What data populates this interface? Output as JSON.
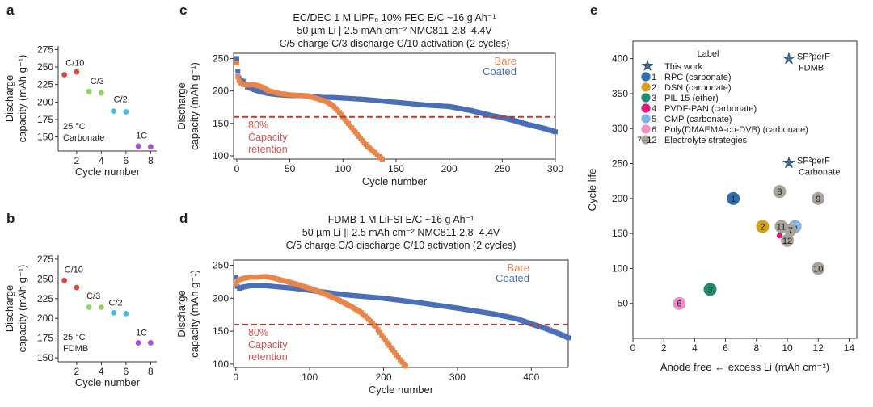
{
  "panels": {
    "a": {
      "letter": "a"
    },
    "b": {
      "letter": "b"
    },
    "c": {
      "letter": "c"
    },
    "d": {
      "letter": "d"
    },
    "e": {
      "letter": "e"
    }
  },
  "colors": {
    "bare": "#e8864a",
    "coated": "#4a6fb8",
    "retention_line": "#c0392b",
    "retention_text": "#d9534f",
    "c10": "#e0473f",
    "c3": "#8ed45a",
    "c2": "#4ab8e8",
    "c1": "#a64fd6"
  },
  "chart_data": [
    {
      "id": "a",
      "type": "scatter",
      "title": "",
      "xlabel": "Cycle number",
      "ylabel": "Discharge capacity (mAh g⁻¹)",
      "xlim": [
        0.5,
        8.5
      ],
      "ylim": [
        130,
        280
      ],
      "xticks": [
        2,
        4,
        6,
        8
      ],
      "yticks": [
        150,
        175,
        200,
        225,
        250,
        275
      ],
      "x": [
        1,
        2,
        3,
        4,
        5,
        6,
        7,
        8
      ],
      "y": [
        239,
        243,
        215,
        213,
        187,
        186,
        137,
        136
      ],
      "rate_labels": [
        {
          "text": "C/10",
          "x": 1.1,
          "y": 252,
          "color": "#e0473f"
        },
        {
          "text": "C/3",
          "x": 3.1,
          "y": 226,
          "color": "#8ed45a"
        },
        {
          "text": "C/2",
          "x": 5.0,
          "y": 200,
          "color": "#4ab8e8"
        },
        {
          "text": "1C",
          "x": 6.8,
          "y": 148,
          "color": "#a64fd6"
        }
      ],
      "note_line1": "25 °C",
      "note_line2": "Carbonate"
    },
    {
      "id": "b",
      "type": "scatter",
      "title": "",
      "xlabel": "Cycle number",
      "ylabel": "Discharge capacity (mAh g⁻¹)",
      "xlim": [
        0.5,
        8.5
      ],
      "ylim": [
        145,
        280
      ],
      "xticks": [
        2,
        4,
        6,
        8
      ],
      "yticks": [
        150,
        175,
        200,
        225,
        250,
        275
      ],
      "x": [
        1,
        2,
        3,
        4,
        5,
        6,
        7,
        8
      ],
      "y": [
        248,
        239,
        214,
        214,
        207,
        206,
        169,
        169
      ],
      "rate_labels": [
        {
          "text": "C/10",
          "x": 1.0,
          "y": 258,
          "color": "#e0473f"
        },
        {
          "text": "C/3",
          "x": 2.8,
          "y": 225,
          "color": "#8ed45a"
        },
        {
          "text": "C/2",
          "x": 4.6,
          "y": 216,
          "color": "#4ab8e8"
        },
        {
          "text": "1C",
          "x": 6.8,
          "y": 178,
          "color": "#a64fd6"
        }
      ],
      "note_line1": "25 °C",
      "note_line2": "FDMB"
    },
    {
      "id": "c",
      "type": "line",
      "title_line1": "EC/DEC 1 M LiPF₆ 10% FEC E/C ~16 g Ah⁻¹",
      "title_line2": "50 µm Li | 2.5 mAh cm⁻² NMC811 2.8–4.4V",
      "title_line3": "C/5 charge C/3 discharge C/10 activation (2 cycles)",
      "xlabel": "Cycle number",
      "ylabel": "Discharge capacity (mAh g⁻¹)",
      "xlim": [
        -3,
        300
      ],
      "ylim": [
        95,
        258
      ],
      "xticks": [
        0,
        50,
        100,
        150,
        200,
        250,
        300
      ],
      "yticks": [
        100,
        150,
        200,
        250
      ],
      "retention_y": 160,
      "retention_label1": "80%",
      "retention_label2": "Capacity",
      "retention_label3": "retention",
      "series": [
        {
          "name": "Bare",
          "x": [
            0,
            1,
            2,
            4,
            6,
            10,
            15,
            20,
            25,
            30,
            40,
            50,
            60,
            70,
            80,
            85,
            90,
            95,
            100,
            105,
            110,
            115,
            120,
            125,
            130,
            134,
            137
          ],
          "y": [
            243,
            222,
            216,
            212,
            210,
            209,
            210,
            208,
            205,
            200,
            196,
            194,
            193,
            191,
            186,
            183,
            178,
            170,
            160,
            150,
            140,
            130,
            120,
            112,
            105,
            99,
            95
          ]
        },
        {
          "name": "Coated",
          "x": [
            0,
            1,
            2,
            4,
            6,
            10,
            20,
            30,
            40,
            50,
            60,
            70,
            80,
            90,
            100,
            120,
            140,
            160,
            180,
            200,
            210,
            220,
            230,
            240,
            250,
            260,
            270,
            280,
            290,
            300
          ],
          "y": [
            250,
            230,
            220,
            217,
            215,
            206,
            200,
            196,
            194,
            193,
            193,
            192,
            190,
            190,
            189,
            187,
            184,
            181,
            178,
            176,
            173,
            170,
            166,
            162,
            159,
            155,
            150,
            146,
            142,
            137
          ]
        }
      ]
    },
    {
      "id": "d",
      "type": "line",
      "title_line1": "FDMB 1 M LiFSI E/C ~16 g Ah⁻¹",
      "title_line2": "50 µm Li || 2.5 mAh cm⁻² NMC811 2.8–4.4V",
      "title_line3": "C/5 charge C/3 discharge C/10 activation (2 cycles)",
      "xlabel": "Cycle number",
      "ylabel": "Discharge capacity (mAh g⁻¹)",
      "xlim": [
        -3,
        450
      ],
      "ylim": [
        95,
        258
      ],
      "xticks": [
        0,
        100,
        200,
        300,
        400
      ],
      "yticks": [
        100,
        150,
        200,
        250
      ],
      "retention_y": 160,
      "retention_label1": "80%",
      "retention_label2": "Capacity",
      "retention_label3": "retention",
      "series": [
        {
          "name": "Bare",
          "x": [
            0,
            2,
            5,
            10,
            20,
            30,
            40,
            50,
            60,
            80,
            100,
            120,
            140,
            160,
            170,
            180,
            190,
            200,
            210,
            220,
            225,
            230
          ],
          "y": [
            222,
            226,
            228,
            230,
            232,
            232,
            233,
            231,
            228,
            222,
            215,
            207,
            197,
            185,
            178,
            168,
            156,
            140,
            125,
            110,
            103,
            97
          ]
        },
        {
          "name": "Coated",
          "x": [
            0,
            2,
            5,
            10,
            20,
            30,
            40,
            60,
            80,
            100,
            150,
            200,
            250,
            300,
            350,
            380,
            400,
            420,
            440,
            450
          ],
          "y": [
            232,
            218,
            215,
            217,
            219,
            219,
            219,
            217,
            215,
            212,
            205,
            200,
            193,
            185,
            176,
            169,
            161,
            154,
            145,
            140
          ]
        }
      ]
    },
    {
      "id": "e",
      "type": "scatter",
      "title": "",
      "xlabel": "Anode free ← excess Li (mAh cm⁻²)",
      "ylabel": "Cycle life",
      "xlim": [
        0,
        14.5
      ],
      "ylim": [
        0,
        425
      ],
      "xticks": [
        0,
        2,
        4,
        6,
        8,
        10,
        12,
        14
      ],
      "yticks": [
        50,
        100,
        150,
        200,
        250,
        300,
        350,
        400
      ],
      "legend_title": "Label",
      "legend": [
        {
          "marker": "★",
          "label": "This work",
          "color": "#3a6ea5"
        },
        {
          "marker": "1",
          "label": "RPC (carbonate)",
          "color": "#2f6fb0"
        },
        {
          "marker": "2",
          "label": "DSN (carbonate)",
          "color": "#d4a017"
        },
        {
          "marker": "3",
          "label": "PIL 15 (ether)",
          "color": "#1e8c70"
        },
        {
          "marker": "4",
          "label": "PVDF-PAN (carbonate)",
          "color": "#e6157a"
        },
        {
          "marker": "5",
          "label": "CMP (carbonate)",
          "color": "#7fb3ea"
        },
        {
          "marker": "6",
          "label": "Poly(DMAEMA-co-DVB) (carbonate)",
          "color": "#f28bc6"
        },
        {
          "marker": "7–12",
          "label": "Electrolyte strategies",
          "color": "#a8a49c"
        }
      ],
      "stars": [
        {
          "x": 10.1,
          "y": 400,
          "label": "SP²perF",
          "sub": "FDMB"
        },
        {
          "x": 10.1,
          "y": 251,
          "label": "SP²perF",
          "sub": "Carbonate"
        }
      ],
      "points": [
        {
          "n": "1",
          "x": 6.5,
          "y": 200,
          "color": "#2f6fb0"
        },
        {
          "n": "2",
          "x": 8.4,
          "y": 160,
          "color": "#d4a017"
        },
        {
          "n": "3",
          "x": 5.0,
          "y": 70,
          "color": "#1e8c70"
        },
        {
          "n": "4",
          "x": 9.5,
          "y": 147,
          "color": "#e6157a"
        },
        {
          "n": "5",
          "x": 10.5,
          "y": 160,
          "color": "#7fb3ea"
        },
        {
          "n": "6",
          "x": 3.0,
          "y": 50,
          "color": "#f28bc6"
        },
        {
          "n": "7",
          "x": 10.2,
          "y": 155,
          "color": "#a8a49c"
        },
        {
          "n": "8",
          "x": 9.5,
          "y": 210,
          "color": "#a8a49c"
        },
        {
          "n": "9",
          "x": 12.0,
          "y": 200,
          "color": "#a8a49c"
        },
        {
          "n": "10",
          "x": 12.0,
          "y": 100,
          "color": "#a8a49c"
        },
        {
          "n": "11",
          "x": 9.6,
          "y": 160,
          "color": "#a8a49c"
        },
        {
          "n": "12",
          "x": 10.0,
          "y": 140,
          "color": "#a8a49c"
        }
      ]
    }
  ]
}
